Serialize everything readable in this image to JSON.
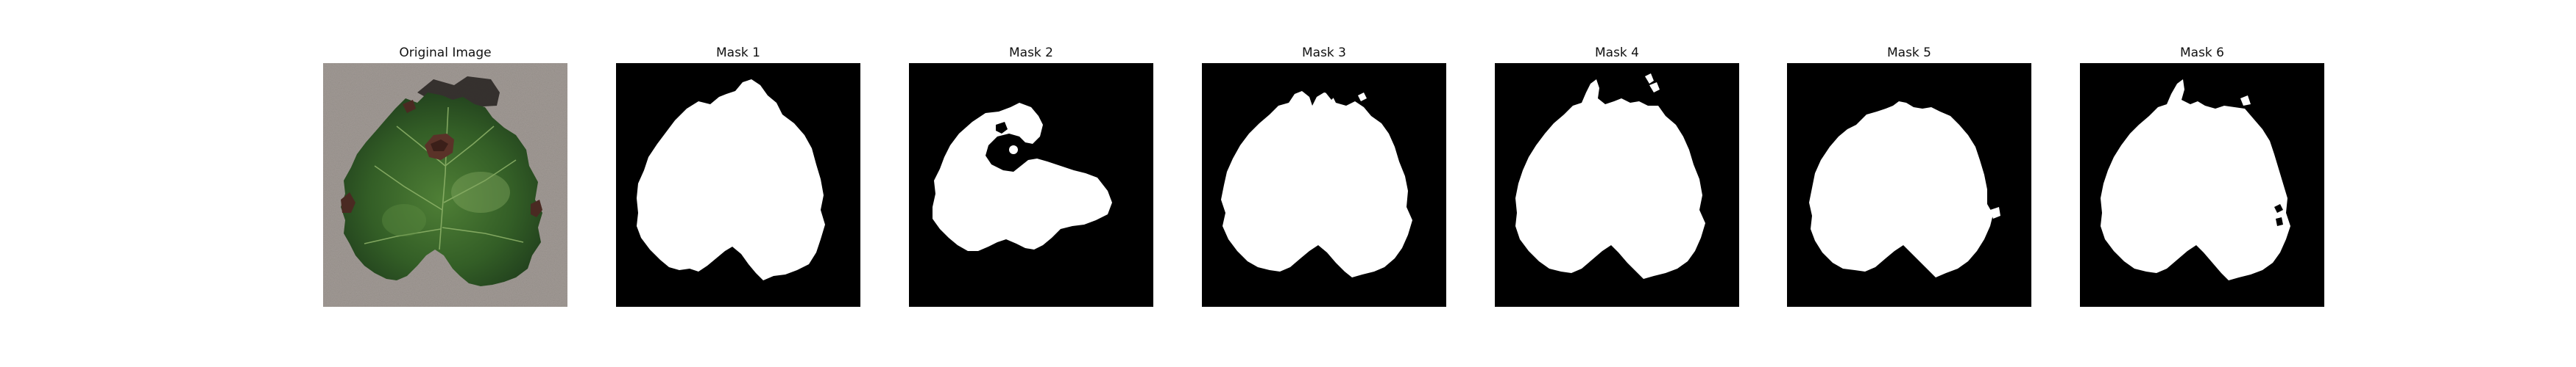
{
  "panels": [
    {
      "title": "Original Image"
    },
    {
      "title": "Mask 1"
    },
    {
      "title": "Mask 2"
    },
    {
      "title": "Mask 3"
    },
    {
      "title": "Mask 4"
    },
    {
      "title": "Mask 5"
    },
    {
      "title": "Mask 6"
    }
  ],
  "colors": {
    "background": "#ffffff",
    "mask_foreground": "#ffffff",
    "mask_background": "#000000",
    "carpet": "#a19a95",
    "leaf_dark": "#1f3d1c",
    "leaf_mid": "#3b6a2a",
    "leaf_light": "#6f9a52",
    "lesion": "#5a3228"
  }
}
